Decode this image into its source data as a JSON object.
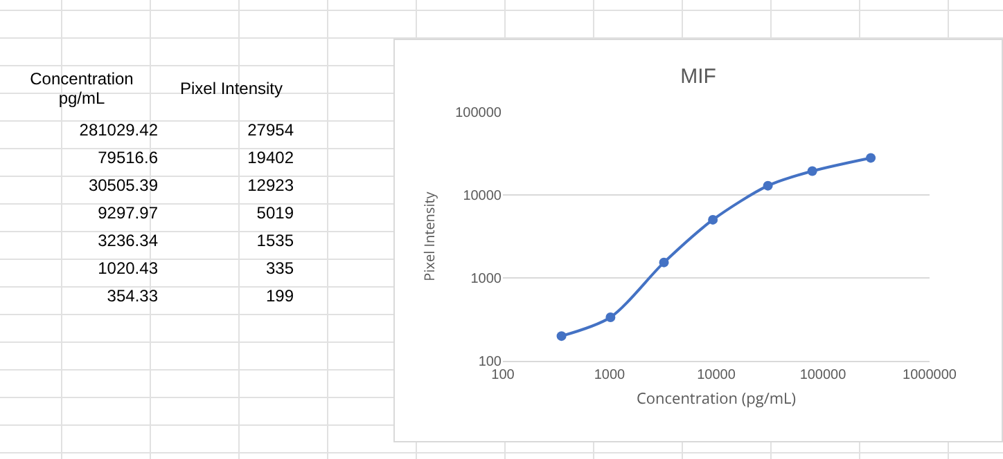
{
  "chart_data": [
    {
      "type": "other",
      "annotations": [
        "Concentration pg/mL",
        "Pixel Intensity",
        "281029.42",
        "27954",
        "79516.6",
        "19402",
        "30505.39",
        "12923",
        "9297.97",
        "5019",
        "3236.34",
        "1535",
        "1020.43",
        "335",
        "354.33",
        "199"
      ]
    },
    {
      "type": "line",
      "title": "MIF",
      "xlabel": "Concentration (pg/mL)",
      "ylabel": "Pixel Intensity",
      "x": [
        281029.42,
        79516.6,
        30505.39,
        9297.97,
        3236.34,
        1020.43,
        354.33
      ],
      "series": [
        {
          "color": "#4472c4",
          "values": [
            27954,
            19402,
            12923,
            5019,
            1535,
            335,
            199
          ]
        }
      ],
      "log": "xy",
      "marker": "circle",
      "line_style": "solid",
      "grid": "y",
      "xlim": [
        100,
        1000000
      ],
      "xticks": [
        100,
        1000,
        10000,
        100000,
        1000000
      ],
      "ylim": [
        100,
        100000
      ],
      "yticks": [
        100,
        1000,
        10000,
        100000
      ]
    }
  ]
}
